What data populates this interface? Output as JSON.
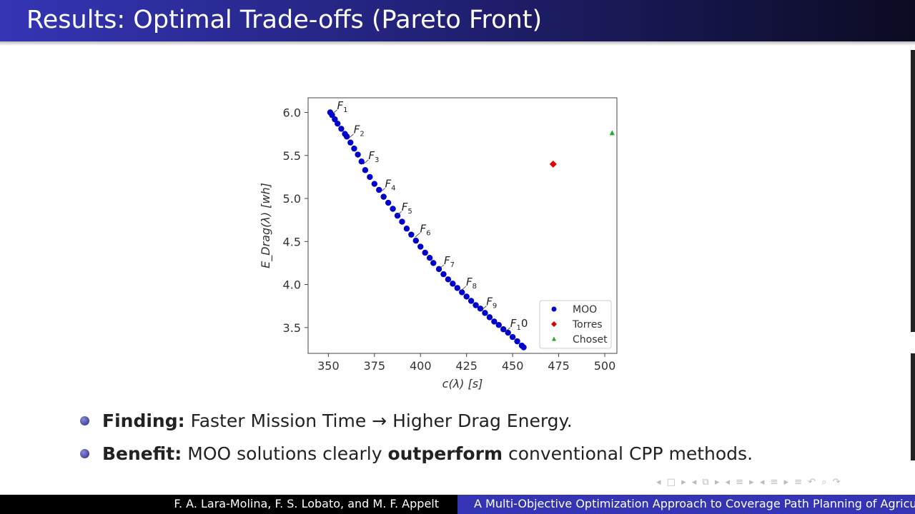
{
  "slide": {
    "title": "Results: Optimal Trade-offs (Pareto Front)"
  },
  "bullets": [
    {
      "label": "Finding:",
      "text_before": "Faster Mission Time → Higher Drag Energy.",
      "emph": "",
      "text_after": ""
    },
    {
      "label": "Benefit:",
      "text_before": "MOO solutions clearly ",
      "emph": "outperform",
      "text_after": " conventional CPP methods."
    }
  ],
  "footer": {
    "authors": "F. A. Lara-Molina, F. S. Lobato, and M. F. Appelt",
    "talk_title": "A Multi-Objective Optimization Approach to Coverage Path Planning of Agricultu"
  },
  "nav_icons": [
    "frame-prev-next-icon",
    "subsection-nav-icon",
    "section-nav-icon",
    "subsubsection-nav-icon",
    "align-icon",
    "search-back-forward-icon"
  ],
  "chart_data": {
    "type": "scatter",
    "xlabel": "c(λ) [s]",
    "ylabel": "E_Drag(λ) [wh]",
    "xlim": [
      339,
      506.6
    ],
    "ylim": [
      3.2,
      6.17
    ],
    "xticks": [
      350,
      375,
      400,
      425,
      450,
      475,
      500
    ],
    "yticks": [
      3.5,
      4.0,
      4.5,
      5.0,
      5.5,
      6.0
    ],
    "grid": false,
    "legend": "lower-right",
    "series": [
      {
        "name": "MOO",
        "color": "#0000cc",
        "marker": "circle",
        "x": [
          351,
          352,
          353.5,
          355,
          357,
          359,
          360,
          362,
          364,
          366,
          368,
          370,
          372.5,
          375,
          377.5,
          380,
          382.5,
          385,
          387.5,
          390,
          392.5,
          395,
          397.5,
          400,
          402.5,
          405,
          407,
          410,
          412.5,
          415,
          417.5,
          420,
          422.5,
          425,
          427.5,
          430,
          432.5,
          435,
          437.5,
          440,
          442.5,
          445,
          447.5,
          450,
          452.5,
          455,
          456
        ],
        "y": [
          6.0,
          5.97,
          5.92,
          5.87,
          5.81,
          5.75,
          5.72,
          5.65,
          5.58,
          5.51,
          5.43,
          5.33,
          5.25,
          5.17,
          5.1,
          5.02,
          4.95,
          4.88,
          4.8,
          4.73,
          4.65,
          4.58,
          4.51,
          4.44,
          4.37,
          4.31,
          4.25,
          4.18,
          4.12,
          4.06,
          4.01,
          3.96,
          3.91,
          3.86,
          3.81,
          3.76,
          3.72,
          3.67,
          3.62,
          3.57,
          3.53,
          3.48,
          3.44,
          3.39,
          3.34,
          3.29,
          3.27
        ]
      },
      {
        "name": "Torres",
        "color": "#dd0000",
        "marker": "diamond",
        "x": [
          472
        ],
        "y": [
          5.4
        ]
      },
      {
        "name": "Choset",
        "color": "#22aa22",
        "marker": "triangle",
        "x": [
          504
        ],
        "y": [
          5.76
        ]
      }
    ],
    "annotations": [
      {
        "text": "F",
        "sub": "1",
        "suffix": "",
        "x": 352,
        "y": 5.98
      },
      {
        "text": "F",
        "sub": "2",
        "suffix": "",
        "x": 361,
        "y": 5.7
      },
      {
        "text": "F",
        "sub": "3",
        "suffix": "",
        "x": 369,
        "y": 5.4
      },
      {
        "text": "F",
        "sub": "4",
        "suffix": "",
        "x": 378,
        "y": 5.07
      },
      {
        "text": "F",
        "sub": "5",
        "suffix": "",
        "x": 387,
        "y": 4.8
      },
      {
        "text": "F",
        "sub": "6",
        "suffix": "",
        "x": 397,
        "y": 4.55
      },
      {
        "text": "F",
        "sub": "7",
        "suffix": "",
        "x": 410,
        "y": 4.18
      },
      {
        "text": "F",
        "sub": "8",
        "suffix": "",
        "x": 422,
        "y": 3.93
      },
      {
        "text": "F",
        "sub": "9",
        "suffix": "",
        "x": 433,
        "y": 3.7
      },
      {
        "text": "F",
        "sub": "1",
        "suffix": "0",
        "x": 446,
        "y": 3.45
      }
    ]
  }
}
